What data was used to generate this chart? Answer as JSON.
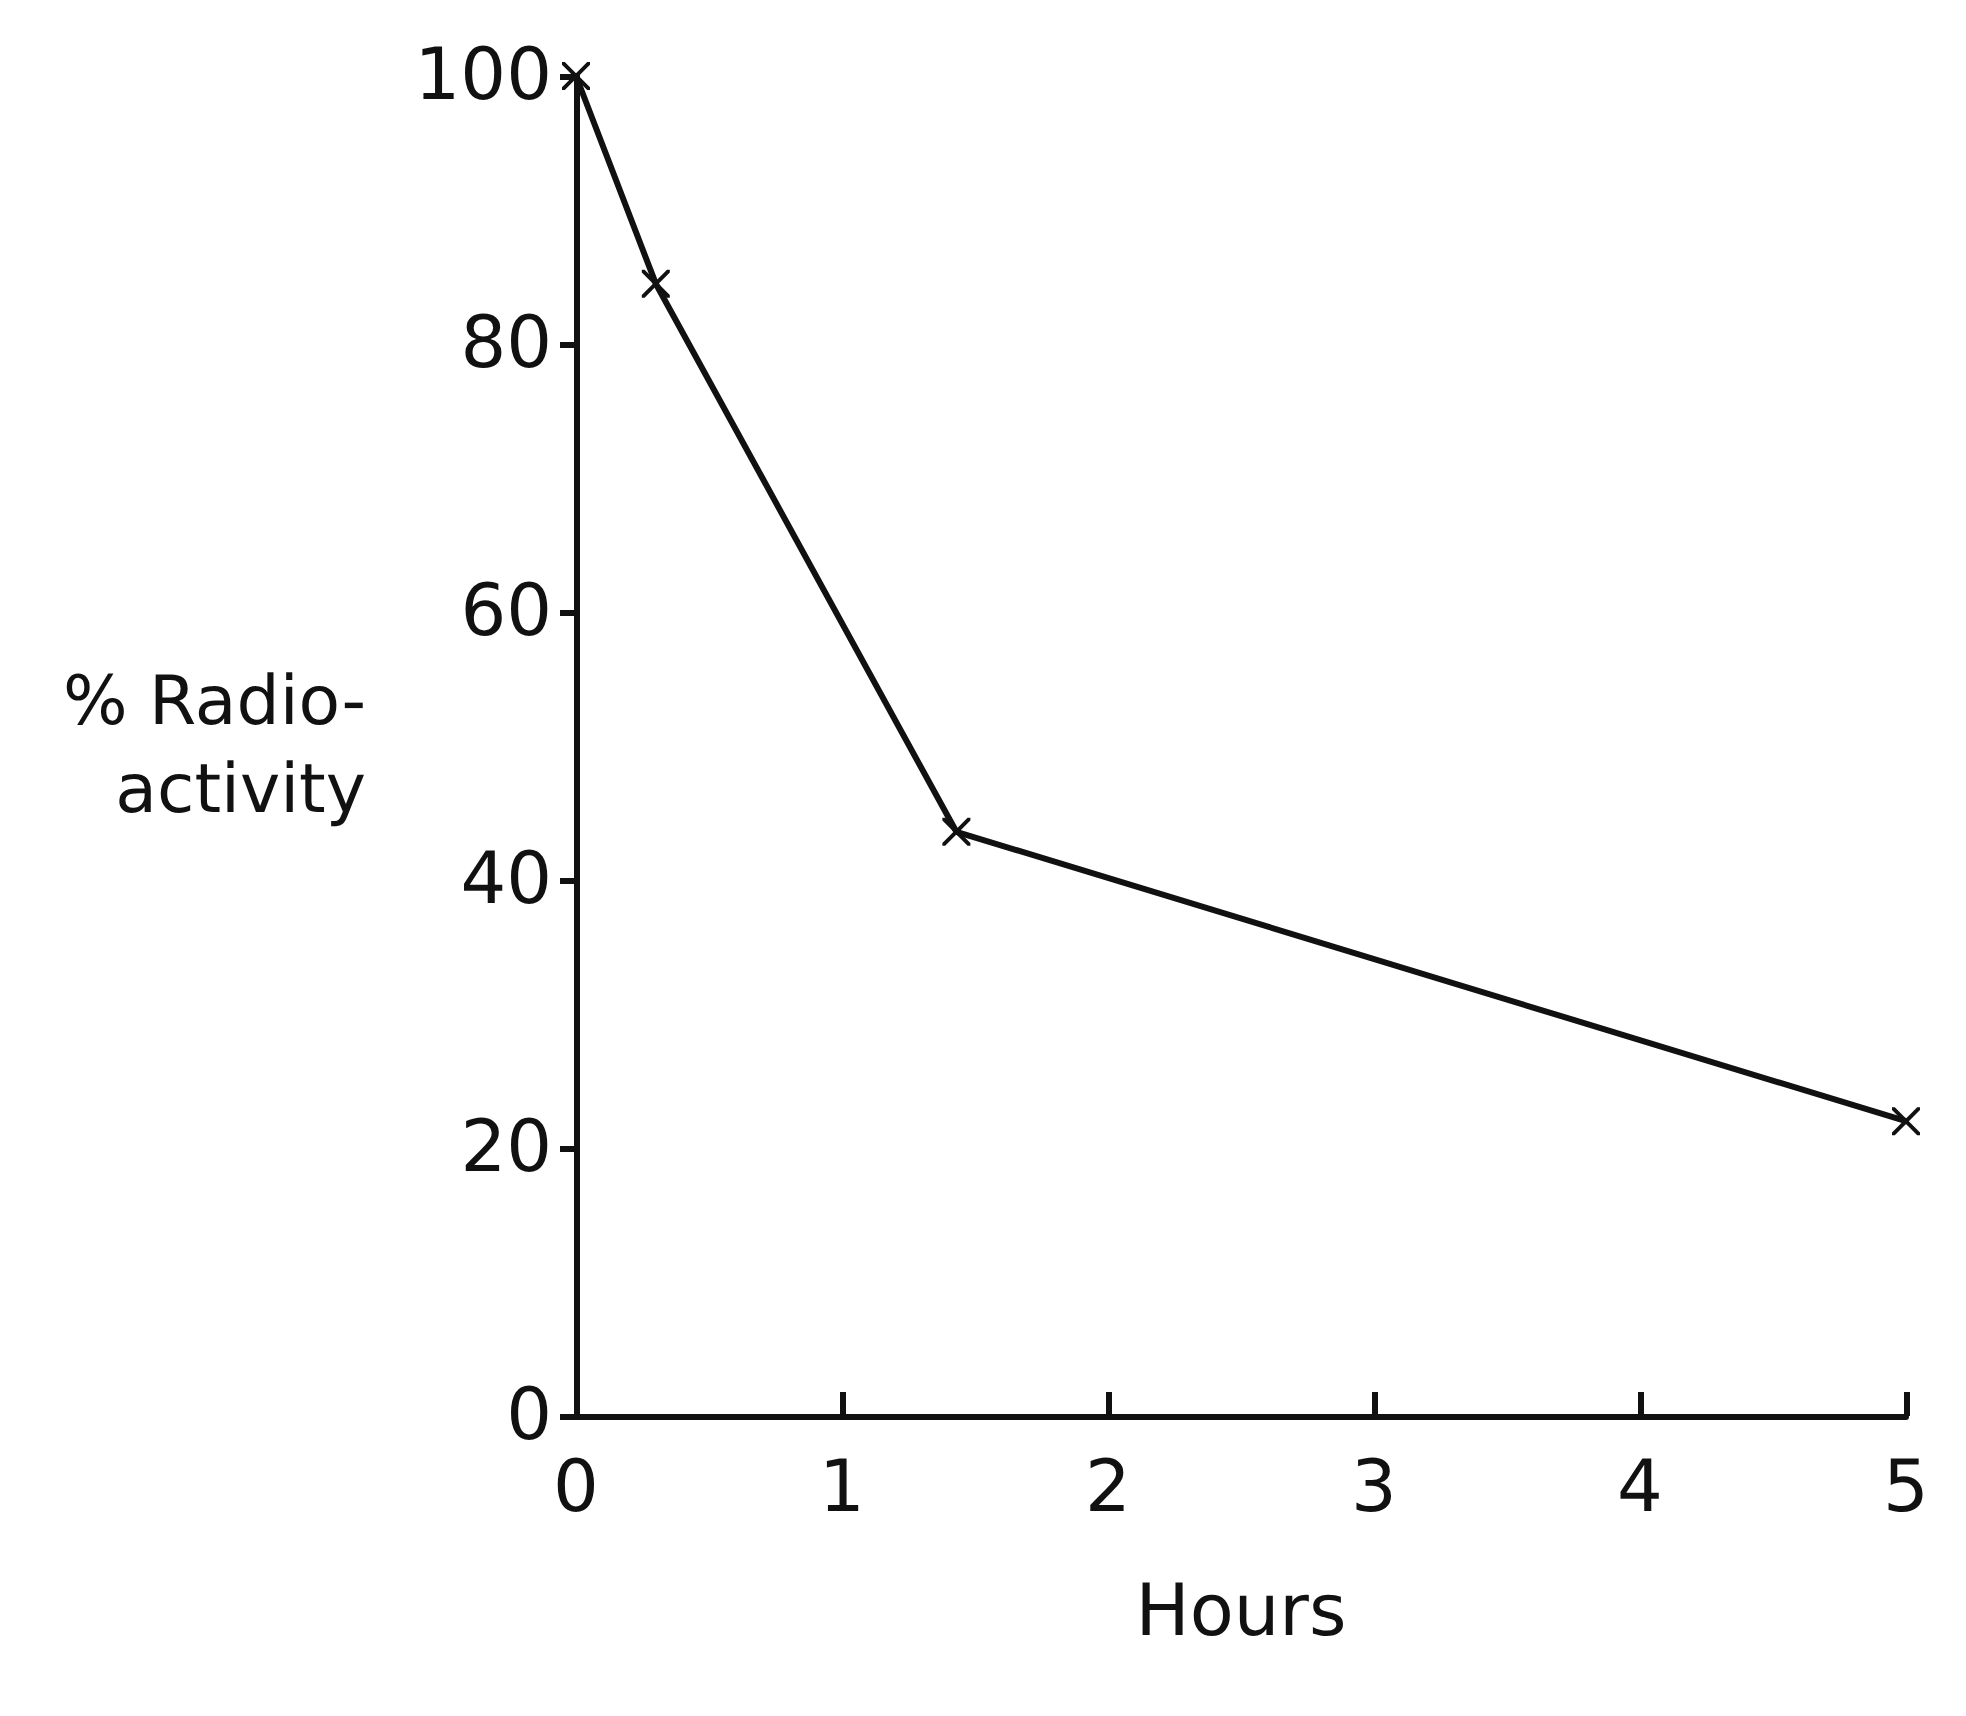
{
  "chart_data": {
    "type": "line",
    "xlabel": "Hours",
    "ylabel": "% Radio-\nactivity",
    "x": [
      0,
      0.3,
      1.43,
      5
    ],
    "series": [
      {
        "color": "#111111",
        "values": [
          100,
          84.5,
          43.6,
          22
        ]
      }
    ],
    "xlim": [
      0,
      5
    ],
    "xticks": [
      0,
      1,
      2,
      3,
      4,
      5
    ],
    "ylim": [
      0,
      100
    ],
    "yticks": [
      0,
      20,
      40,
      60,
      80,
      100
    ],
    "grid": false,
    "marker": "cross",
    "line_style": "solid"
  }
}
